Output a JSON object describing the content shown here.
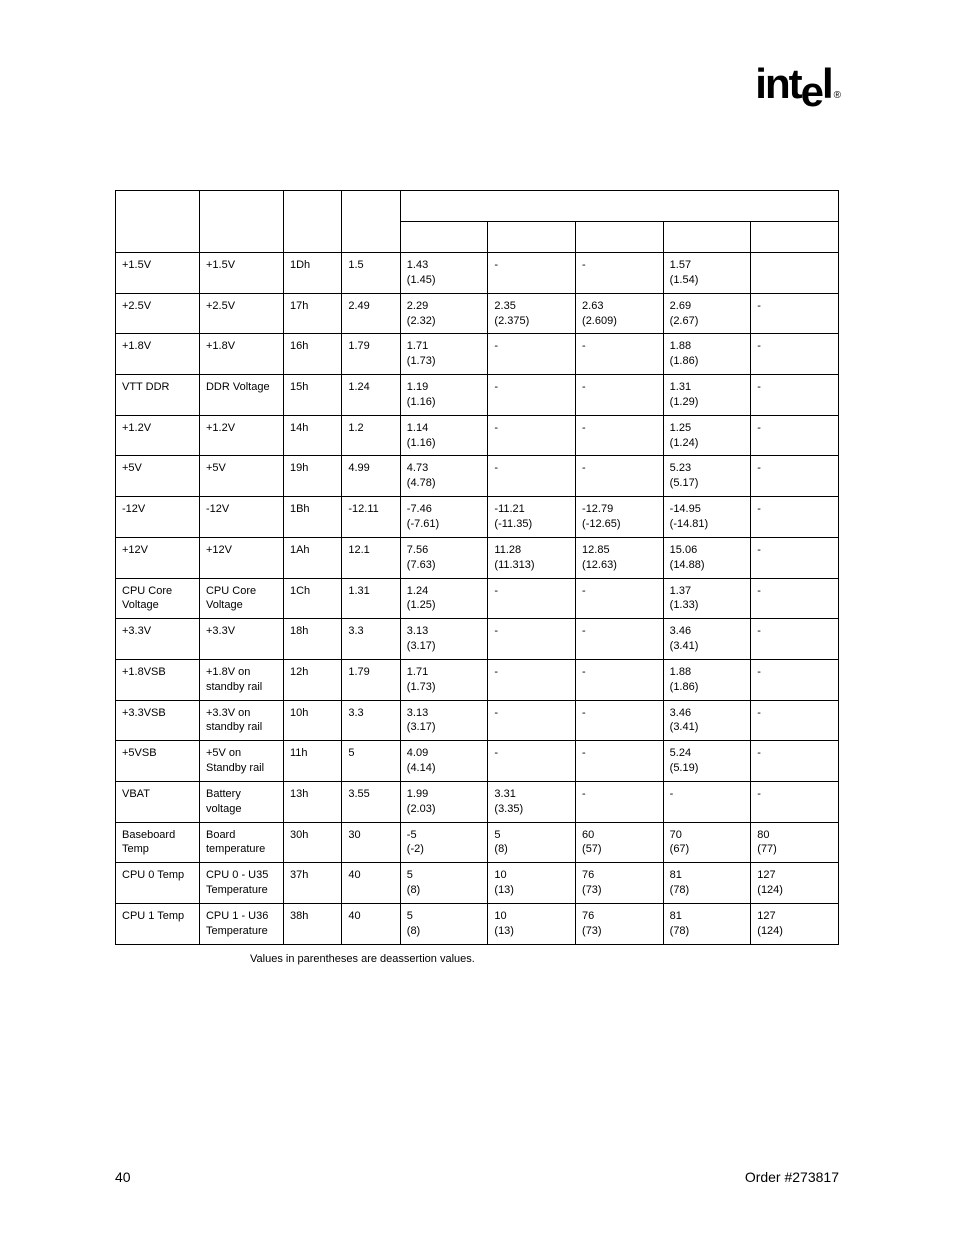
{
  "logo": {
    "prefix": "int",
    "e": "e",
    "suffix": "l",
    "registered": "®"
  },
  "table": {
    "border_color": "#000000",
    "background_color": "#ffffff",
    "text_color": "#000000",
    "font_size": 11,
    "columns": [
      "sensor_name",
      "description",
      "sensor_num",
      "nominal",
      "col5",
      "col6",
      "col7",
      "col8",
      "col9"
    ],
    "rows": [
      {
        "c1": "+1.5V",
        "c2": "+1.5V",
        "c3": "1Dh",
        "c4": "1.5",
        "c5": "1.43\n(1.45)",
        "c6": "-",
        "c7": "-",
        "c8": "1.57\n(1.54)",
        "c9": ""
      },
      {
        "c1": "+2.5V",
        "c2": "+2.5V",
        "c3": "17h",
        "c4": "2.49",
        "c5": "2.29\n(2.32)",
        "c6": "2.35\n(2.375)",
        "c7": "2.63\n(2.609)",
        "c8": "2.69\n(2.67)",
        "c9": "-"
      },
      {
        "c1": "+1.8V",
        "c2": "+1.8V",
        "c3": "16h",
        "c4": "1.79",
        "c5": "1.71\n(1.73)",
        "c6": "-",
        "c7": "-",
        "c8": "1.88\n(1.86)",
        "c9": "-"
      },
      {
        "c1": "VTT DDR",
        "c2": "DDR Voltage",
        "c3": "15h",
        "c4": "1.24",
        "c5": "1.19\n(1.16)",
        "c6": "-",
        "c7": "-",
        "c8": "1.31\n(1.29)",
        "c9": "-"
      },
      {
        "c1": "+1.2V",
        "c2": "+1.2V",
        "c3": "14h",
        "c4": "1.2",
        "c5": "1.14\n(1.16)",
        "c6": "-",
        "c7": "-",
        "c8": "1.25\n(1.24)",
        "c9": "-"
      },
      {
        "c1": "+5V",
        "c2": "+5V",
        "c3": "19h",
        "c4": "4.99",
        "c5": "4.73\n(4.78)",
        "c6": "-",
        "c7": "-",
        "c8": "5.23\n(5.17)",
        "c9": "-"
      },
      {
        "c1": "-12V",
        "c2": "-12V",
        "c3": "1Bh",
        "c4": "-12.11",
        "c5": "-7.46\n(-7.61)",
        "c6": "-11.21\n(-11.35)",
        "c7": "-12.79\n(-12.65)",
        "c8": "-14.95\n(-14.81)",
        "c9": "-"
      },
      {
        "c1": "+12V",
        "c2": "+12V",
        "c3": "1Ah",
        "c4": "12.1",
        "c5": "7.56\n(7.63)",
        "c6": "11.28\n(11.313)",
        "c7": "12.85\n(12.63)",
        "c8": "15.06\n(14.88)",
        "c9": "-"
      },
      {
        "c1": "CPU Core Voltage",
        "c2": "CPU Core Voltage",
        "c3": "1Ch",
        "c4": "1.31",
        "c5": "1.24\n(1.25)",
        "c6": "-",
        "c7": "-",
        "c8": "1.37\n(1.33)",
        "c9": "-"
      },
      {
        "c1": "+3.3V",
        "c2": "+3.3V",
        "c3": "18h",
        "c4": "3.3",
        "c5": "3.13\n(3.17)",
        "c6": "-",
        "c7": "-",
        "c8": "3.46\n(3.41)",
        "c9": "-"
      },
      {
        "c1": "+1.8VSB",
        "c2": "+1.8V on standby rail",
        "c3": "12h",
        "c4": "1.79",
        "c5": "1.71\n(1.73)",
        "c6": "-",
        "c7": "-",
        "c8": "1.88\n(1.86)",
        "c9": "-"
      },
      {
        "c1": "+3.3VSB",
        "c2": "+3.3V on standby rail",
        "c3": "10h",
        "c4": "3.3",
        "c5": "3.13\n(3.17)",
        "c6": "-",
        "c7": "-",
        "c8": "3.46\n(3.41)",
        "c9": "-"
      },
      {
        "c1": "+5VSB",
        "c2": "+5V on Standby rail",
        "c3": "11h",
        "c4": "5",
        "c5": "4.09\n(4.14)",
        "c6": "-",
        "c7": "-",
        "c8": "5.24\n(5.19)",
        "c9": "-"
      },
      {
        "c1": "VBAT",
        "c2": "Battery voltage",
        "c3": "13h",
        "c4": "3.55",
        "c5": "1.99\n(2.03)",
        "c6": "3.31\n(3.35)",
        "c7": "-",
        "c8": "-",
        "c9": "-"
      },
      {
        "c1": "Baseboard Temp",
        "c2": "Board temperature",
        "c3": "30h",
        "c4": "30",
        "c5": "-5\n(-2)",
        "c6": "5\n(8)",
        "c7": "60\n(57)",
        "c8": "70\n(67)",
        "c9": "80\n(77)"
      },
      {
        "c1": "CPU 0 Temp",
        "c2": "CPU 0 - U35 Temperature",
        "c3": "37h",
        "c4": "40",
        "c5": "5\n(8)",
        "c6": "10\n(13)",
        "c7": "76\n(73)",
        "c8": "81\n(78)",
        "c9": "127\n(124)"
      },
      {
        "c1": "CPU 1 Temp",
        "c2": "CPU 1 - U36 Temperature",
        "c3": "38h",
        "c4": "40",
        "c5": "5\n(8)",
        "c6": "10\n(13)",
        "c7": "76\n(73)",
        "c8": "81\n(78)",
        "c9": "127\n(124)"
      }
    ]
  },
  "note": "Values in parentheses are deassertion values.",
  "footer": {
    "page_number": "40",
    "order": "Order #273817"
  }
}
